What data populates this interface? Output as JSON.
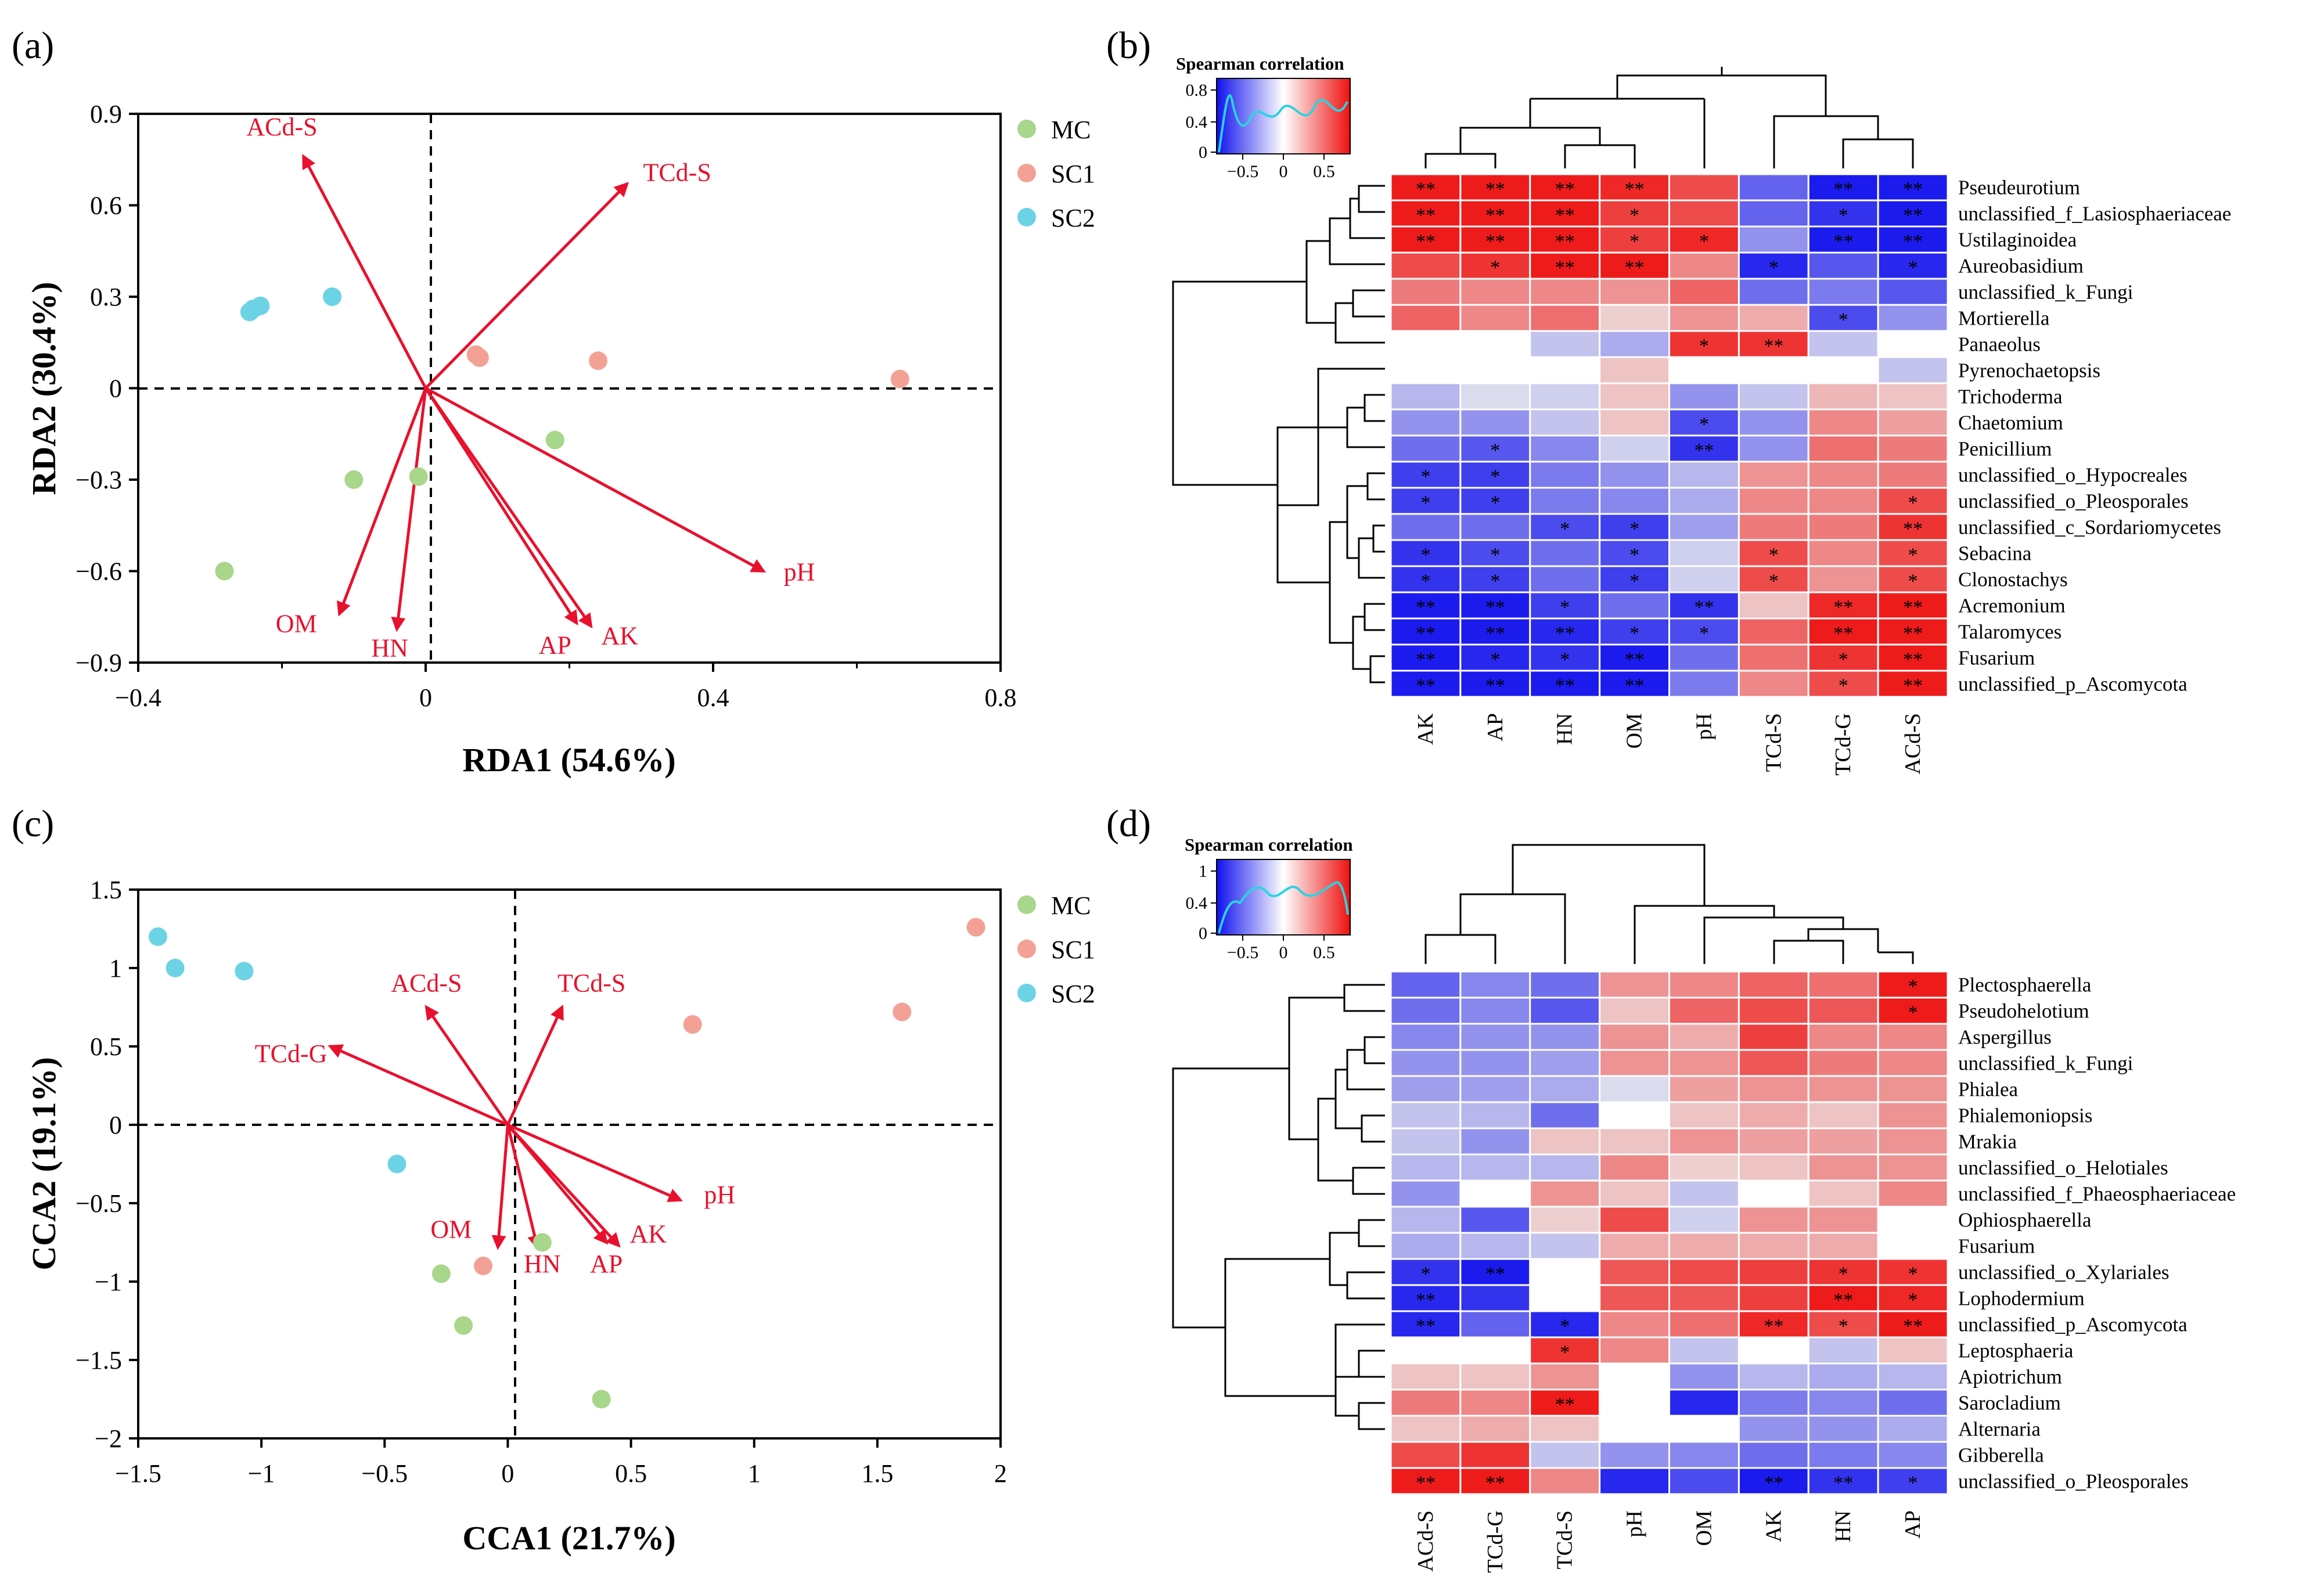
{
  "chart_data": [
    {
      "panel": "(a)",
      "type": "scatter",
      "xlabel": "RDA1 (54.6%)",
      "ylabel": "RDA2 (30.4%)",
      "xlim": [
        -0.4,
        0.8
      ],
      "ylim": [
        -0.9,
        0.9
      ],
      "xticks": [
        -0.4,
        0,
        0.4,
        0.8
      ],
      "xtickLabels": [
        "−0.4",
        "0",
        "0.4",
        "0.8"
      ],
      "xminor": [
        -0.2,
        0.2,
        0.6
      ],
      "yticks": [
        -0.9,
        -0.6,
        -0.3,
        0,
        0.3,
        0.6,
        0.9
      ],
      "ytickLabels": [
        "−0.9",
        "−0.6",
        "−0.3",
        "0",
        "0.3",
        "0.6",
        "0.9"
      ],
      "legend": [
        {
          "label": "MC",
          "color": "#a8d68a"
        },
        {
          "label": "SC1",
          "color": "#f4a195"
        },
        {
          "label": "SC2",
          "color": "#6cd3e5"
        }
      ],
      "series": [
        {
          "name": "MC",
          "color": "#a8d68a",
          "points": [
            [
              -0.28,
              -0.6
            ],
            [
              -0.1,
              -0.3
            ],
            [
              -0.01,
              -0.29
            ],
            [
              0.18,
              -0.17
            ]
          ]
        },
        {
          "name": "SC1",
          "color": "#f4a195",
          "points": [
            [
              0.07,
              0.11
            ],
            [
              0.075,
              0.1
            ],
            [
              0.24,
              0.09
            ],
            [
              0.66,
              0.03
            ]
          ]
        },
        {
          "name": "SC2",
          "color": "#6cd3e5",
          "points": [
            [
              -0.245,
              0.25
            ],
            [
              -0.24,
              0.26
            ],
            [
              -0.23,
              0.27
            ],
            [
              -0.13,
              0.3
            ]
          ]
        }
      ],
      "arrows": [
        {
          "label": "ACd-S",
          "x": -0.17,
          "y": 0.76,
          "lx": -0.2,
          "ly": 0.83
        },
        {
          "label": "TCd-S",
          "x": 0.28,
          "y": 0.67,
          "lx": 0.35,
          "ly": 0.68
        },
        {
          "label": "pH",
          "x": 0.47,
          "y": -0.6,
          "lx": 0.52,
          "ly": -0.63
        },
        {
          "label": "AK",
          "x": 0.23,
          "y": -0.78,
          "lx": 0.27,
          "ly": -0.84
        },
        {
          "label": "AP",
          "x": 0.21,
          "y": -0.77,
          "lx": 0.18,
          "ly": -0.87
        },
        {
          "label": "HN",
          "x": -0.04,
          "y": -0.79,
          "lx": -0.05,
          "ly": -0.88
        },
        {
          "label": "OM",
          "x": -0.12,
          "y": -0.74,
          "lx": -0.18,
          "ly": -0.8
        }
      ]
    },
    {
      "panel": "(b)",
      "type": "heatmap",
      "scale_title": "Spearman correlation",
      "scale_ticks": [
        "−0.5",
        "0",
        "0.5"
      ],
      "scale_yticks": [
        "0.8",
        "0.4",
        "0"
      ],
      "columns": [
        "AK",
        "AP",
        "HN",
        "OM",
        "pH",
        "TCd-S",
        "TCd-G",
        "ACd-S"
      ],
      "rows": [
        "Pseudeurotium",
        "unclassified_f_Lasiosphaeriaceae",
        "Ustilaginoidea",
        "Aureobasidium",
        "unclassified_k_Fungi",
        "Mortierella",
        "Panaeolus",
        "Pyrenochaetopsis",
        "Trichoderma",
        "Chaetomium",
        "Penicillium",
        "unclassified_o_Hypocreales",
        "unclassified_o_Pleosporales",
        "unclassified_c_Sordariomycetes",
        "Sebacina",
        "Clonostachys",
        "Acremonium",
        "Talaromyces",
        "Fusarium",
        "unclassified_p_Ascomycota"
      ],
      "values": [
        [
          0.95,
          0.95,
          0.95,
          0.9,
          0.75,
          -0.65,
          -0.95,
          -0.95
        ],
        [
          0.95,
          0.95,
          0.95,
          0.8,
          0.75,
          -0.65,
          -0.85,
          -0.95
        ],
        [
          0.95,
          0.95,
          0.95,
          0.8,
          0.9,
          -0.45,
          -0.95,
          -0.95
        ],
        [
          0.75,
          0.85,
          0.95,
          0.95,
          0.5,
          -0.9,
          -0.7,
          -0.9
        ],
        [
          0.55,
          0.5,
          0.5,
          0.45,
          0.65,
          -0.6,
          -0.55,
          -0.7
        ],
        [
          0.65,
          0.5,
          0.6,
          0.2,
          0.45,
          0.35,
          -0.75,
          -0.45
        ],
        [
          0,
          0,
          -0.25,
          -0.35,
          0.85,
          0.85,
          -0.25,
          0
        ],
        [
          0,
          0,
          0,
          0.25,
          0,
          0,
          0,
          -0.25
        ],
        [
          -0.3,
          -0.15,
          -0.2,
          0.25,
          -0.45,
          -0.25,
          0.3,
          0.25
        ],
        [
          -0.45,
          -0.45,
          -0.25,
          0.25,
          -0.75,
          -0.45,
          0.5,
          0.4
        ],
        [
          -0.6,
          -0.7,
          -0.5,
          -0.2,
          -0.85,
          -0.45,
          0.6,
          0.55
        ],
        [
          -0.8,
          -0.8,
          -0.55,
          -0.45,
          -0.3,
          0.45,
          0.5,
          0.55
        ],
        [
          -0.8,
          -0.8,
          -0.55,
          -0.5,
          -0.35,
          0.5,
          0.5,
          0.75
        ],
        [
          -0.6,
          -0.6,
          -0.75,
          -0.8,
          -0.4,
          0.55,
          0.55,
          0.85
        ],
        [
          -0.85,
          -0.75,
          -0.6,
          -0.75,
          -0.2,
          0.75,
          0.5,
          0.75
        ],
        [
          -0.85,
          -0.8,
          -0.6,
          -0.8,
          -0.2,
          0.75,
          0.45,
          0.75
        ],
        [
          -0.95,
          -0.95,
          -0.8,
          -0.6,
          -0.85,
          0.25,
          0.9,
          0.95
        ],
        [
          -0.95,
          -0.95,
          -0.9,
          -0.8,
          -0.75,
          0.65,
          0.95,
          0.95
        ],
        [
          -0.95,
          -0.9,
          -0.85,
          -0.95,
          -0.6,
          0.6,
          0.85,
          0.95
        ],
        [
          -0.95,
          -0.95,
          -0.95,
          -0.95,
          -0.55,
          0.5,
          0.75,
          0.95
        ]
      ],
      "stars": [
        [
          "**",
          "**",
          "**",
          "**",
          "",
          "",
          "**",
          "**"
        ],
        [
          "**",
          "**",
          "**",
          "*",
          "",
          "",
          "*",
          "**"
        ],
        [
          "**",
          "**",
          "**",
          "*",
          "*",
          "",
          "**",
          "**"
        ],
        [
          "",
          "*",
          "**",
          "**",
          "",
          "*",
          "",
          "*"
        ],
        [
          "",
          "",
          "",
          "",
          "",
          "",
          "",
          ""
        ],
        [
          "",
          "",
          "",
          "",
          "",
          "",
          "*",
          ""
        ],
        [
          "",
          "",
          "",
          "",
          "*",
          "**",
          "",
          ""
        ],
        [
          "",
          "",
          "",
          "",
          "",
          "",
          "",
          ""
        ],
        [
          "",
          "",
          "",
          "",
          "",
          "",
          "",
          ""
        ],
        [
          "",
          "",
          "",
          "",
          "*",
          "",
          "",
          ""
        ],
        [
          "",
          "*",
          "",
          "",
          "**",
          "",
          "",
          ""
        ],
        [
          "*",
          "*",
          "",
          "",
          "",
          "",
          "",
          ""
        ],
        [
          "*",
          "*",
          "",
          "",
          "",
          "",
          "",
          "*"
        ],
        [
          "",
          "",
          "*",
          "*",
          "",
          "",
          "",
          "**"
        ],
        [
          "*",
          "*",
          "",
          "*",
          "",
          "*",
          "",
          "*"
        ],
        [
          "*",
          "*",
          "",
          "*",
          "",
          "*",
          "",
          "*"
        ],
        [
          "**",
          "**",
          "*",
          "",
          "**",
          "",
          "**",
          "**"
        ],
        [
          "**",
          "**",
          "**",
          "*",
          "*",
          "",
          "**",
          "**"
        ],
        [
          "**",
          "*",
          "*",
          "**",
          "",
          "",
          "*",
          "**"
        ],
        [
          "**",
          "**",
          "**",
          "**",
          "",
          "",
          "*",
          "**"
        ]
      ]
    },
    {
      "panel": "(c)",
      "type": "scatter",
      "xlabel": "CCA1 (21.7%)",
      "ylabel": "CCA2 (19.1%)",
      "xlim": [
        -1.5,
        2
      ],
      "ylim": [
        -2,
        1.5
      ],
      "xticks": [
        -1.5,
        -1,
        -0.5,
        0,
        0.5,
        1,
        1.5,
        2
      ],
      "xtickLabels": [
        "−1.5",
        "−1",
        "−0.5",
        "0",
        "0.5",
        "1",
        "1.5",
        "2"
      ],
      "xminor": [],
      "yticks": [
        -2,
        -1.5,
        -1,
        -0.5,
        0,
        0.5,
        1,
        1.5
      ],
      "ytickLabels": [
        "−2",
        "−1.5",
        "−1",
        "−0.5",
        "0",
        "0.5",
        "1",
        "1.5"
      ],
      "legend": [
        {
          "label": "MC",
          "color": "#a8d68a"
        },
        {
          "label": "SC1",
          "color": "#f4a195"
        },
        {
          "label": "SC2",
          "color": "#6cd3e5"
        }
      ],
      "series": [
        {
          "name": "MC",
          "color": "#a8d68a",
          "points": [
            [
              -0.27,
              -0.95
            ],
            [
              -0.18,
              -1.28
            ],
            [
              0.14,
              -0.75
            ],
            [
              0.38,
              -1.75
            ]
          ]
        },
        {
          "name": "SC1",
          "color": "#f4a195",
          "points": [
            [
              -0.1,
              -0.9
            ],
            [
              0.75,
              0.64
            ],
            [
              1.6,
              0.72
            ],
            [
              1.9,
              1.26
            ]
          ]
        },
        {
          "name": "SC2",
          "color": "#6cd3e5",
          "points": [
            [
              -1.42,
              1.2
            ],
            [
              -1.35,
              1.0
            ],
            [
              -1.07,
              0.98
            ],
            [
              -0.45,
              -0.25
            ]
          ]
        }
      ],
      "arrows": [
        {
          "label": "TCd-G",
          "x": -0.72,
          "y": 0.5,
          "lx": -0.88,
          "ly": 0.4
        },
        {
          "label": "ACd-S",
          "x": -0.33,
          "y": 0.75,
          "lx": -0.33,
          "ly": 0.85
        },
        {
          "label": "TCd-S",
          "x": 0.22,
          "y": 0.75,
          "lx": 0.34,
          "ly": 0.85
        },
        {
          "label": "pH",
          "x": 0.7,
          "y": -0.48,
          "lx": 0.86,
          "ly": -0.5
        },
        {
          "label": "AK",
          "x": 0.45,
          "y": -0.77,
          "lx": 0.57,
          "ly": -0.75
        },
        {
          "label": "AP",
          "x": 0.4,
          "y": -0.75,
          "lx": 0.4,
          "ly": -0.94
        },
        {
          "label": "HN",
          "x": 0.12,
          "y": -0.78,
          "lx": 0.14,
          "ly": -0.94
        },
        {
          "label": "OM",
          "x": -0.04,
          "y": -0.78,
          "lx": -0.23,
          "ly": -0.72
        }
      ]
    },
    {
      "panel": "(d)",
      "type": "heatmap",
      "scale_title": "Spearman correlation",
      "scale_ticks": [
        "−0.5",
        "0",
        "0.5"
      ],
      "scale_yticks": [
        "1",
        "0.4",
        "0"
      ],
      "columns": [
        "ACd-S",
        "TCd-G",
        "TCd-S",
        "pH",
        "OM",
        "AK",
        "HN",
        "AP"
      ],
      "rows": [
        "Plectosphaerella",
        "Pseudohelotium",
        "Aspergillus",
        "unclassified_k_Fungi",
        "Phialea",
        "Phialemoniopsis",
        "Mrakia",
        "unclassified_o_Helotiales",
        "unclassified_f_Phaeosphaeriaceae",
        "Ophiosphaerella",
        "Fusarium",
        "unclassified_o_Xylariales",
        "Lophodermium",
        "unclassified_p_Ascomycota",
        "Leptosphaeria",
        "Apiotrichum",
        "Sarocladium",
        "Alternaria",
        "Gibberella",
        "unclassified_o_Pleosporales"
      ],
      "values": [
        [
          -0.65,
          -0.5,
          -0.6,
          0.45,
          0.5,
          0.65,
          0.6,
          0.95
        ],
        [
          -0.6,
          -0.5,
          -0.7,
          0.25,
          0.65,
          0.75,
          0.7,
          0.95
        ],
        [
          -0.5,
          -0.45,
          -0.45,
          0.45,
          0.35,
          0.8,
          0.5,
          0.5
        ],
        [
          -0.45,
          -0.45,
          -0.4,
          0.45,
          0.45,
          0.7,
          0.55,
          0.5
        ],
        [
          -0.4,
          -0.4,
          -0.35,
          -0.15,
          0.4,
          0.45,
          0.45,
          0.45
        ],
        [
          -0.25,
          -0.3,
          -0.6,
          0,
          0.25,
          0.35,
          0.25,
          0.45
        ],
        [
          -0.25,
          -0.45,
          0.25,
          0.25,
          0.45,
          0.4,
          0.4,
          0.45
        ],
        [
          -0.3,
          -0.3,
          -0.3,
          0.5,
          0.2,
          0.25,
          0.45,
          0.45
        ],
        [
          -0.45,
          0,
          0.45,
          0.25,
          -0.25,
          0,
          0.25,
          0.5
        ],
        [
          -0.3,
          -0.7,
          0.2,
          0.75,
          -0.2,
          0.45,
          0.45,
          0
        ],
        [
          -0.35,
          -0.3,
          -0.25,
          0.35,
          0.35,
          0.35,
          0.35,
          0
        ],
        [
          -0.85,
          -0.95,
          0,
          0.7,
          0.75,
          0.8,
          0.85,
          0.85
        ],
        [
          -0.9,
          -0.85,
          0,
          0.7,
          0.7,
          0.8,
          0.95,
          0.9
        ],
        [
          -0.9,
          -0.65,
          -0.9,
          0.5,
          0.6,
          0.9,
          0.75,
          0.95
        ],
        [
          0,
          0,
          0.85,
          0.5,
          -0.25,
          0,
          -0.25,
          0.25
        ],
        [
          0.25,
          0.25,
          0.45,
          0,
          -0.45,
          -0.3,
          -0.35,
          -0.3
        ],
        [
          0.55,
          0.5,
          0.95,
          0,
          -0.9,
          -0.55,
          -0.5,
          -0.6
        ],
        [
          0.25,
          0.35,
          0.25,
          0,
          0,
          -0.45,
          -0.45,
          -0.35
        ],
        [
          0.75,
          0.85,
          -0.25,
          -0.45,
          -0.5,
          -0.6,
          -0.55,
          -0.5
        ],
        [
          0.95,
          0.95,
          0.5,
          -0.9,
          -0.75,
          -0.95,
          -0.85,
          -0.8
        ]
      ],
      "stars": [
        [
          "",
          "",
          "",
          "",
          "",
          "",
          "",
          "*"
        ],
        [
          "",
          "",
          "",
          "",
          "",
          "",
          "",
          "*"
        ],
        [
          "",
          "",
          "",
          "",
          "",
          "",
          "",
          ""
        ],
        [
          "",
          "",
          "",
          "",
          "",
          "",
          "",
          ""
        ],
        [
          "",
          "",
          "",
          "",
          "",
          "",
          "",
          ""
        ],
        [
          "",
          "",
          "",
          "",
          "",
          "",
          "",
          ""
        ],
        [
          "",
          "",
          "",
          "",
          "",
          "",
          "",
          ""
        ],
        [
          "",
          "",
          "",
          "",
          "",
          "",
          "",
          ""
        ],
        [
          "",
          "",
          "",
          "",
          "",
          "",
          "",
          ""
        ],
        [
          "",
          "",
          "",
          "",
          "",
          "",
          "",
          ""
        ],
        [
          "",
          "",
          "",
          "",
          "",
          "",
          "",
          ""
        ],
        [
          "*",
          "**",
          "",
          "",
          "",
          "",
          "*",
          "*"
        ],
        [
          "**",
          "",
          "",
          "",
          "",
          "",
          "**",
          "*"
        ],
        [
          "**",
          "",
          "*",
          "",
          "",
          "**",
          "*",
          "**"
        ],
        [
          "",
          "",
          "*",
          "",
          "",
          "",
          "",
          ""
        ],
        [
          "",
          "",
          "",
          "",
          "",
          "",
          "",
          ""
        ],
        [
          "",
          "",
          "**",
          "",
          "",
          "",
          "",
          ""
        ],
        [
          "",
          "",
          "",
          "",
          "",
          "",
          "",
          ""
        ],
        [
          "",
          "",
          "",
          "",
          "",
          "",
          "",
          ""
        ],
        [
          "**",
          "**",
          "",
          "",
          "",
          "**",
          "**",
          "*"
        ]
      ]
    }
  ]
}
